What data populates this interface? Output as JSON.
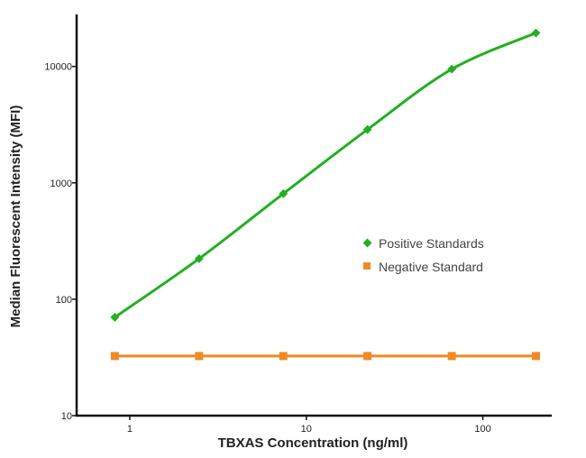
{
  "chart_data": {
    "type": "line",
    "title": "",
    "xlabel": "TBXAS Concentration (ng/ml)",
    "ylabel": "Median Fluorescent Intensity (MFI)",
    "xscale": "log",
    "yscale": "log",
    "xlim": [
      0.5,
      240
    ],
    "ylim": [
      10,
      27000
    ],
    "xticks": [
      "1",
      "10",
      "100"
    ],
    "yticks": [
      "10",
      "100",
      "1000",
      "10000"
    ],
    "grid": false,
    "legend_position": "center-right",
    "series": [
      {
        "name": "Positive Standards",
        "color": "#22b022",
        "marker": "diamond",
        "x": [
          0.823,
          2.47,
          7.41,
          22.2,
          66.7,
          200
        ],
        "y": [
          70,
          223,
          807,
          2870,
          9480,
          19400
        ]
      },
      {
        "name": "Negative Standard",
        "color": "#f08a24",
        "marker": "square",
        "x": [
          0.823,
          2.47,
          7.41,
          22.2,
          66.7,
          200
        ],
        "y": [
          32.5,
          32.5,
          32.5,
          32.5,
          32.5,
          32.5
        ]
      }
    ]
  }
}
